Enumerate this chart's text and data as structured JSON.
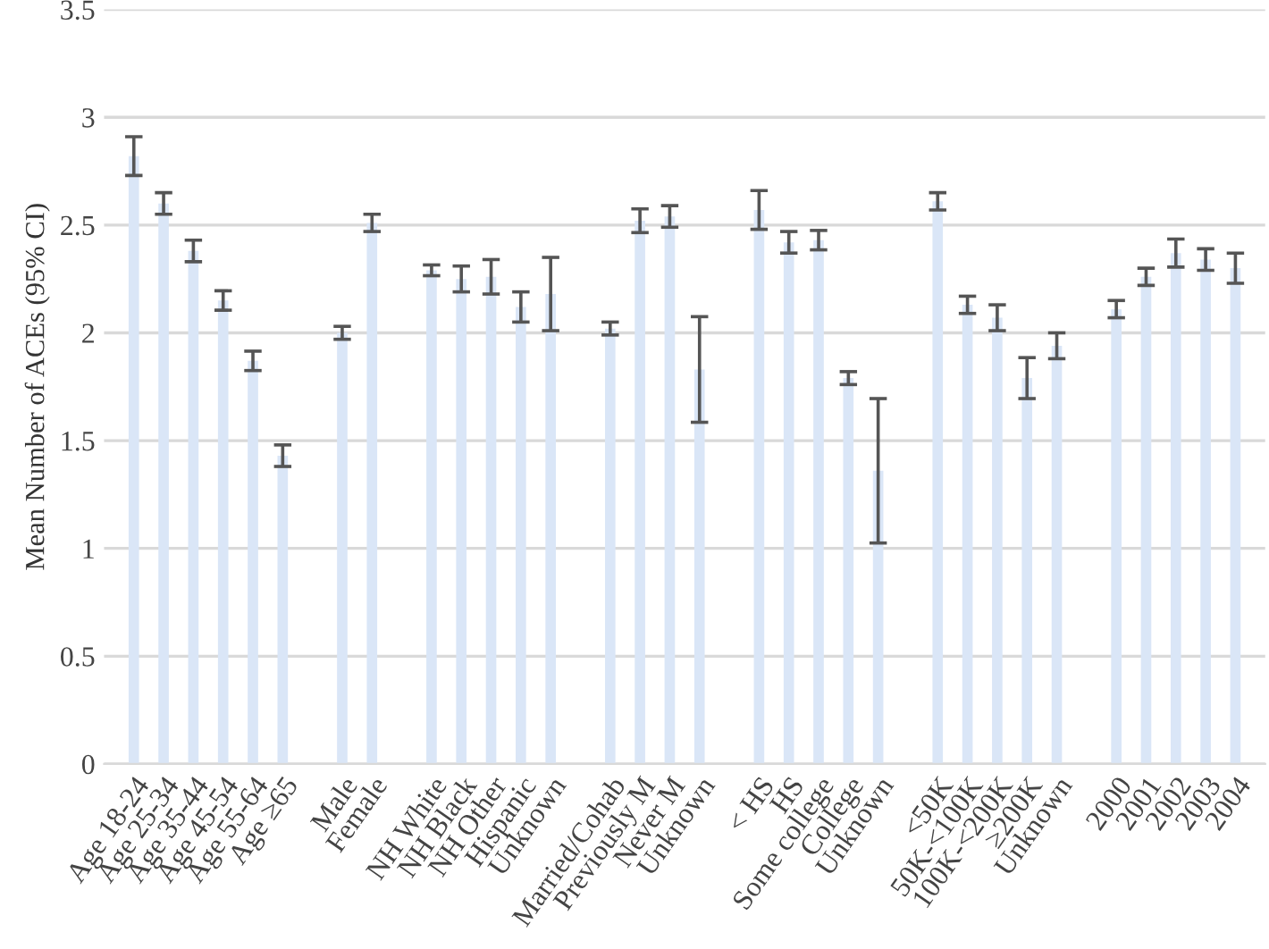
{
  "chart_data": {
    "type": "bar",
    "ylabel": "Mean Number of ACEs (95% CI)",
    "categories": [
      "Age 18-24",
      "Age 25-34",
      "Age 35-44",
      "Age 45-54",
      "Age 55-64",
      "Age ≥65",
      null,
      "Male",
      "Female",
      null,
      "NH White",
      "NH Black",
      "NH Other",
      "Hispanic",
      "Unknown",
      null,
      "Married/Cohab",
      "Previously M",
      "Never M",
      "Unknown",
      null,
      "< HS",
      "HS",
      "Some college",
      "College",
      "Unknown",
      null,
      "<50K",
      "50K-<100K",
      "100K-<200K",
      "≥200K",
      "Unknown",
      null,
      "2000",
      "2001",
      "2002",
      "2003",
      "2004"
    ],
    "values": [
      2.82,
      2.6,
      2.38,
      2.15,
      1.87,
      1.43,
      null,
      2.0,
      2.51,
      null,
      2.29,
      2.25,
      2.26,
      2.12,
      2.18,
      null,
      2.02,
      2.52,
      2.54,
      1.83,
      null,
      2.57,
      2.42,
      2.43,
      1.79,
      1.36,
      null,
      2.61,
      2.13,
      2.07,
      1.79,
      1.94,
      null,
      2.11,
      2.26,
      2.37,
      2.34,
      2.3
    ],
    "errors": [
      0.09,
      0.05,
      0.05,
      0.045,
      0.045,
      0.05,
      null,
      0.03,
      0.04,
      null,
      0.025,
      0.06,
      0.08,
      0.07,
      0.17,
      null,
      0.03,
      0.055,
      0.05,
      0.245,
      null,
      0.09,
      0.05,
      0.045,
      0.03,
      0.335,
      null,
      0.04,
      0.04,
      0.06,
      0.095,
      0.06,
      null,
      0.04,
      0.04,
      0.065,
      0.05,
      0.07
    ],
    "color": "#dae6f7",
    "ylim": [
      0,
      3.5
    ],
    "yticks": [
      0,
      0.5,
      1,
      1.5,
      2,
      2.5,
      3,
      3.5
    ],
    "grid": "y"
  }
}
